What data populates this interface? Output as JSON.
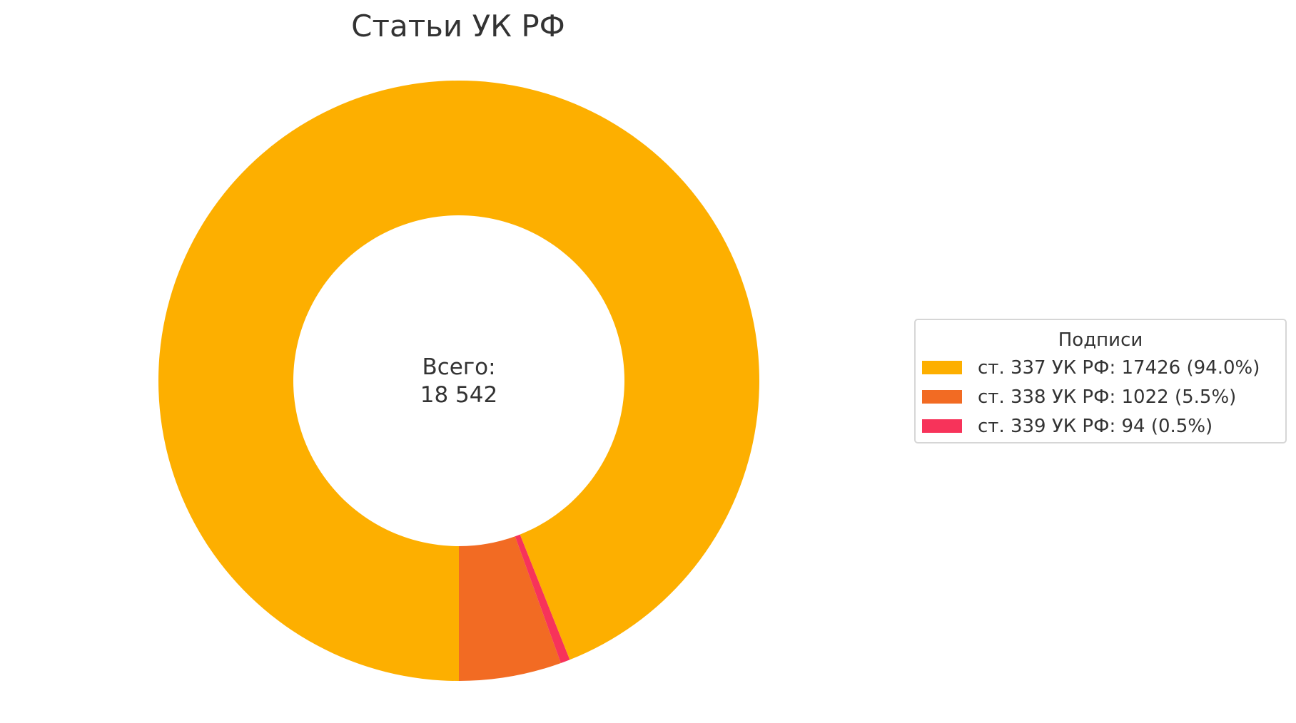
{
  "chart_data": {
    "type": "pie",
    "donut": true,
    "title": "Статьи УК РФ",
    "center_label": {
      "line1": "Всего:",
      "line2": "18 542"
    },
    "total": 18542,
    "legend_title": "Подписи",
    "legend_position": "right",
    "categories": [
      "ст. 337 УК РФ",
      "ст. 338 УК РФ",
      "ст. 339 УК РФ"
    ],
    "values": [
      17426,
      1022,
      94
    ],
    "percents": [
      94.0,
      5.5,
      0.5
    ],
    "legend_labels": [
      "ст. 337 УК РФ: 17426 (94.0%)",
      "ст. 338 УК РФ: 1022 (5.5%)",
      "ст. 339 УК РФ: 94 (0.5%)"
    ],
    "colors": [
      "#fdaf00",
      "#f26b23",
      "#f7335a"
    ]
  }
}
